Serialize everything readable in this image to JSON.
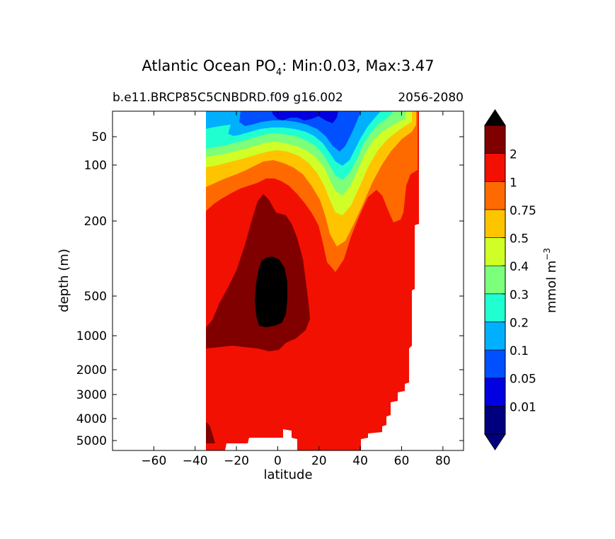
{
  "chart_data": {
    "type": "heatmap",
    "title_prefix": "Atlantic Ocean PO",
    "title_sub": "4",
    "title_suffix": ": Min:0.03, Max:3.47",
    "subtitle_left": "b.e11.BRCP85C5CNBDRD.f09 g16.002",
    "subtitle_right": "2056-2080",
    "xlabel": "latitude",
    "ylabel": "depth (m)",
    "xlim": [
      -80,
      90
    ],
    "x_ticks": [
      -60,
      -40,
      -20,
      0,
      20,
      40,
      60,
      80
    ],
    "x_tick_labels": [
      "−60",
      "−40",
      "−20",
      "0",
      "20",
      "40",
      "60",
      "80"
    ],
    "y_ticks": [
      50,
      100,
      200,
      500,
      1000,
      2000,
      3000,
      4000,
      5000
    ],
    "y_tick_labels": [
      "50",
      "100",
      "200",
      "500",
      "1000",
      "2000",
      "3000",
      "4000",
      "5000"
    ],
    "y_scale": "depth (inverted, nonlinear)",
    "data_lat_range": [
      -34,
      69
    ],
    "colorbar": {
      "label_main": "mmol m",
      "label_sup": "−3",
      "levels": [
        "0.01",
        "0.05",
        "0.1",
        "0.2",
        "0.3",
        "0.4",
        "0.5",
        "0.75",
        "1",
        "2"
      ],
      "colors": [
        "#00007f",
        "#0000e0",
        "#0050ff",
        "#00b0ff",
        "#20ffd0",
        "#7cff7a",
        "#d0ff28",
        "#ffc400",
        "#ff6a00",
        "#f21002",
        "#800000"
      ],
      "extend": "both",
      "over_color": "#000000"
    }
  }
}
